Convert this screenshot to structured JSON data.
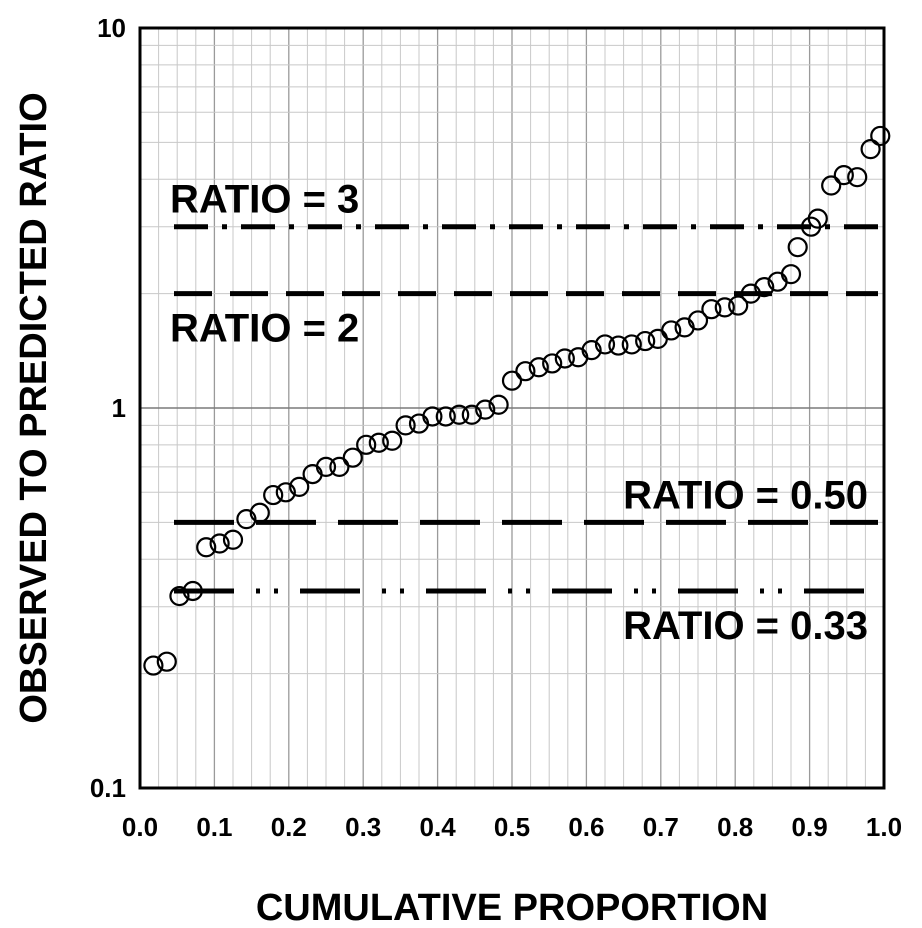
{
  "chart_data": {
    "type": "scatter",
    "xlabel": "CUMULATIVE PROPORTION",
    "ylabel": "OBSERVED TO PREDICTED RATIO",
    "xlim": [
      0.0,
      1.0
    ],
    "ylim": [
      0.1,
      10
    ],
    "yscale": "log",
    "grid": true,
    "x_ticks": [
      "0.0",
      "0.1",
      "0.2",
      "0.3",
      "0.4",
      "0.5",
      "0.6",
      "0.7",
      "0.8",
      "0.9",
      "1.0"
    ],
    "y_ticks": [
      "0.1",
      "1",
      "10"
    ],
    "reference_lines": [
      {
        "label": "RATIO = 3",
        "y": 3,
        "style": "dash-dot",
        "label_position": "above"
      },
      {
        "label": "RATIO = 2",
        "y": 2,
        "style": "dash",
        "label_position": "below"
      },
      {
        "label": "RATIO = 0.50",
        "y": 0.5,
        "style": "long-dash",
        "label_position": "above"
      },
      {
        "label": "RATIO = 0.33",
        "y": 0.33,
        "style": "long-dash-dot-dot",
        "label_position": "below"
      }
    ],
    "points": [
      [
        0.018,
        0.21
      ],
      [
        0.036,
        0.215
      ],
      [
        0.053,
        0.32
      ],
      [
        0.071,
        0.33
      ],
      [
        0.089,
        0.43
      ],
      [
        0.107,
        0.44
      ],
      [
        0.125,
        0.45
      ],
      [
        0.143,
        0.51
      ],
      [
        0.161,
        0.53
      ],
      [
        0.179,
        0.59
      ],
      [
        0.196,
        0.6
      ],
      [
        0.214,
        0.62
      ],
      [
        0.232,
        0.67
      ],
      [
        0.25,
        0.7
      ],
      [
        0.268,
        0.7
      ],
      [
        0.286,
        0.74
      ],
      [
        0.304,
        0.8
      ],
      [
        0.321,
        0.81
      ],
      [
        0.339,
        0.82
      ],
      [
        0.357,
        0.9
      ],
      [
        0.375,
        0.91
      ],
      [
        0.393,
        0.95
      ],
      [
        0.411,
        0.95
      ],
      [
        0.429,
        0.96
      ],
      [
        0.446,
        0.96
      ],
      [
        0.464,
        0.99
      ],
      [
        0.482,
        1.02
      ],
      [
        0.5,
        1.18
      ],
      [
        0.518,
        1.25
      ],
      [
        0.536,
        1.28
      ],
      [
        0.554,
        1.31
      ],
      [
        0.571,
        1.35
      ],
      [
        0.589,
        1.36
      ],
      [
        0.607,
        1.42
      ],
      [
        0.625,
        1.47
      ],
      [
        0.643,
        1.46
      ],
      [
        0.661,
        1.47
      ],
      [
        0.679,
        1.5
      ],
      [
        0.696,
        1.52
      ],
      [
        0.714,
        1.6
      ],
      [
        0.732,
        1.63
      ],
      [
        0.75,
        1.7
      ],
      [
        0.768,
        1.82
      ],
      [
        0.786,
        1.84
      ],
      [
        0.804,
        1.86
      ],
      [
        0.821,
        2.0
      ],
      [
        0.839,
        2.08
      ],
      [
        0.857,
        2.15
      ],
      [
        0.875,
        2.25
      ],
      [
        0.884,
        2.65
      ],
      [
        0.902,
        3.0
      ],
      [
        0.911,
        3.15
      ],
      [
        0.929,
        3.85
      ],
      [
        0.946,
        4.1
      ],
      [
        0.964,
        4.05
      ],
      [
        0.982,
        4.8
      ],
      [
        0.995,
        5.2
      ]
    ]
  }
}
